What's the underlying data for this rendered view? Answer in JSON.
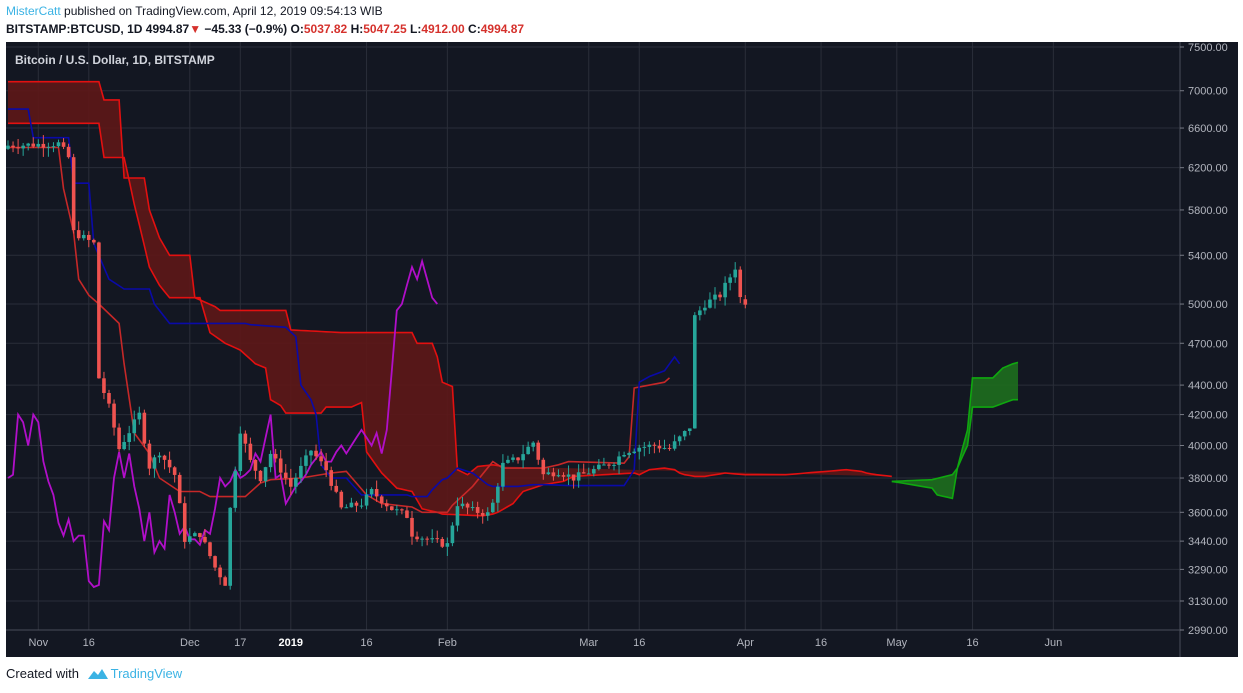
{
  "header": {
    "author": "MisterCatt",
    "published_text": "published on TradingView.com, April 12, 2019 09:54:13 WIB",
    "symbol": "BITSTAMP:BTCUSD, 1D",
    "last": "4994.87",
    "change": "−45.33 (−0.9%)",
    "open_label": "O:",
    "open": "5037.82",
    "high_label": "H:",
    "high": "5047.25",
    "low_label": "L:",
    "low": "4912.00",
    "close_label": "C:",
    "close": "4994.87"
  },
  "footer": {
    "created_with": "Created with",
    "brand": "TradingView"
  },
  "colors": {
    "background": "#131722",
    "grid": "#2a2e39",
    "up": "#26a69a",
    "down": "#ef5350",
    "cloud_bear": "#5e1717",
    "cloud_bull": "#1e6e1e",
    "span_red": "#e31010",
    "span_green": "#0fa80f",
    "tenkan": "#0a0aa8",
    "kijun": "#c62828",
    "lagging": "#b10fc9"
  },
  "chart_data": {
    "type": "candlestick",
    "title": "Bitcoin / U.S. Dollar, 1D, BITSTAMP",
    "scale": "log",
    "ylim": [
      2990,
      7500
    ],
    "yticks": [
      7500,
      7000,
      6600,
      6200,
      5800,
      5400,
      5000,
      4700,
      4400,
      4200,
      4000,
      3800,
      3600,
      3440,
      3290,
      3130,
      2990
    ],
    "ytick_labels": [
      "7500.00",
      "7000.00",
      "6600.00",
      "6200.00",
      "5800.00",
      "5400.00",
      "5000.00",
      "4700.00",
      "4400.00",
      "4200.00",
      "4000.00",
      "3800.00",
      "3600.00",
      "3440.00",
      "3290.00",
      "3130.00",
      "2990.00"
    ],
    "xticks": [
      {
        "label": "Nov",
        "day": 6,
        "bold": false
      },
      {
        "label": "16",
        "day": 16,
        "bold": false
      },
      {
        "label": "Dec",
        "day": 36,
        "bold": false
      },
      {
        "label": "17",
        "day": 46,
        "bold": false
      },
      {
        "label": "2019",
        "day": 56,
        "bold": true
      },
      {
        "label": "16",
        "day": 71,
        "bold": false
      },
      {
        "label": "Feb",
        "day": 87,
        "bold": false
      },
      {
        "label": "Mar",
        "day": 115,
        "bold": false
      },
      {
        "label": "16",
        "day": 125,
        "bold": false
      },
      {
        "label": "Apr",
        "day": 146,
        "bold": false
      },
      {
        "label": "16",
        "day": 161,
        "bold": false
      },
      {
        "label": "May",
        "day": 176,
        "bold": false
      },
      {
        "label": "16",
        "day": 191,
        "bold": false
      },
      {
        "label": "Jun",
        "day": 207,
        "bold": false
      }
    ],
    "grid": true,
    "key_closes": [
      [
        0,
        6420
      ],
      [
        10,
        6440
      ],
      [
        12,
        6300
      ],
      [
        13,
        5600
      ],
      [
        17,
        5500
      ],
      [
        18,
        4450
      ],
      [
        20,
        4250
      ],
      [
        22,
        3980
      ],
      [
        26,
        4200
      ],
      [
        28,
        3870
      ],
      [
        30,
        3960
      ],
      [
        33,
        3820
      ],
      [
        35,
        3450
      ],
      [
        38,
        3480
      ],
      [
        41,
        3300
      ],
      [
        43,
        3220
      ],
      [
        44,
        3620
      ],
      [
        46,
        4100
      ],
      [
        48,
        3900
      ],
      [
        50,
        3800
      ],
      [
        52,
        3950
      ],
      [
        56,
        3750
      ],
      [
        60,
        3970
      ],
      [
        63,
        3850
      ],
      [
        66,
        3620
      ],
      [
        70,
        3650
      ],
      [
        72,
        3720
      ],
      [
        76,
        3620
      ],
      [
        79,
        3580
      ],
      [
        80,
        3480
      ],
      [
        84,
        3440
      ],
      [
        87,
        3420
      ],
      [
        89,
        3650
      ],
      [
        92,
        3610
      ],
      [
        95,
        3590
      ],
      [
        96,
        3650
      ],
      [
        98,
        3880
      ],
      [
        101,
        3920
      ],
      [
        104,
        4020
      ],
      [
        106,
        3820
      ],
      [
        109,
        3840
      ],
      [
        112,
        3800
      ],
      [
        117,
        3860
      ],
      [
        120,
        3900
      ],
      [
        122,
        3960
      ],
      [
        125,
        3990
      ],
      [
        128,
        4000
      ],
      [
        131,
        3980
      ],
      [
        134,
        4080
      ],
      [
        135,
        4120
      ],
      [
        136,
        4900
      ],
      [
        138,
        5000
      ],
      [
        141,
        5070
      ],
      [
        143,
        5220
      ],
      [
        144,
        5300
      ],
      [
        145,
        5050
      ],
      [
        146,
        4995
      ]
    ],
    "tenkan_sen": [
      [
        0,
        6800
      ],
      [
        4,
        6800
      ],
      [
        5,
        6500
      ],
      [
        12,
        6500
      ],
      [
        13,
        6050
      ],
      [
        16,
        6050
      ],
      [
        17,
        5500
      ],
      [
        20,
        5200
      ],
      [
        23,
        5120
      ],
      [
        28,
        5120
      ],
      [
        29,
        5000
      ],
      [
        31,
        4900
      ],
      [
        32,
        4850
      ],
      [
        47,
        4850
      ],
      [
        48,
        4840
      ],
      [
        55,
        4820
      ],
      [
        57,
        4750
      ],
      [
        58,
        4400
      ],
      [
        60,
        4300
      ],
      [
        61,
        4200
      ],
      [
        62,
        3880
      ],
      [
        64,
        3800
      ],
      [
        67,
        3800
      ],
      [
        70,
        3700
      ],
      [
        79,
        3700
      ],
      [
        80,
        3690
      ],
      [
        83,
        3690
      ],
      [
        84,
        3730
      ],
      [
        86,
        3790
      ],
      [
        87,
        3800
      ],
      [
        89,
        3860
      ],
      [
        92,
        3830
      ],
      [
        95,
        3760
      ],
      [
        96,
        3750
      ],
      [
        101,
        3750
      ],
      [
        104,
        3760
      ],
      [
        107,
        3760
      ],
      [
        111,
        3755
      ],
      [
        122,
        3755
      ],
      [
        123,
        3800
      ],
      [
        124,
        3850
      ],
      [
        125,
        4420
      ],
      [
        127,
        4460
      ],
      [
        130,
        4500
      ],
      [
        132,
        4600
      ],
      [
        133,
        4550
      ]
    ],
    "kijun_sen": [
      [
        0,
        6400
      ],
      [
        10,
        6400
      ],
      [
        11,
        6000
      ],
      [
        13,
        5600
      ],
      [
        14,
        5200
      ],
      [
        16,
        5070
      ],
      [
        18,
        5000
      ],
      [
        22,
        4850
      ],
      [
        23,
        4550
      ],
      [
        25,
        4080
      ],
      [
        28,
        3950
      ],
      [
        30,
        3800
      ],
      [
        34,
        3720
      ],
      [
        38,
        3720
      ],
      [
        40,
        3690
      ],
      [
        47,
        3690
      ],
      [
        50,
        3770
      ],
      [
        52,
        3790
      ],
      [
        58,
        3800
      ],
      [
        64,
        3830
      ],
      [
        67,
        3840
      ],
      [
        71,
        3700
      ],
      [
        74,
        3650
      ],
      [
        80,
        3630
      ],
      [
        82,
        3600
      ],
      [
        87,
        3600
      ],
      [
        88,
        3640
      ],
      [
        92,
        3750
      ],
      [
        96,
        3900
      ],
      [
        98,
        3860
      ],
      [
        106,
        3860
      ],
      [
        109,
        3880
      ],
      [
        111,
        3900
      ],
      [
        122,
        3890
      ],
      [
        123,
        3930
      ],
      [
        124,
        4380
      ],
      [
        130,
        4420
      ],
      [
        131,
        4450
      ]
    ],
    "chikou_span": [
      [
        0,
        3800
      ],
      [
        1,
        3820
      ],
      [
        2,
        4200
      ],
      [
        3,
        4150
      ],
      [
        4,
        4000
      ],
      [
        5,
        4200
      ],
      [
        6,
        4150
      ],
      [
        7,
        3900
      ],
      [
        8,
        3780
      ],
      [
        9,
        3700
      ],
      [
        10,
        3540
      ],
      [
        11,
        3470
      ],
      [
        12,
        3560
      ],
      [
        13,
        3440
      ],
      [
        14,
        3470
      ],
      [
        15,
        3470
      ],
      [
        16,
        3230
      ],
      [
        17,
        3200
      ],
      [
        18,
        3210
      ],
      [
        19,
        3550
      ],
      [
        20,
        3500
      ],
      [
        21,
        3800
      ],
      [
        22,
        3960
      ],
      [
        23,
        3800
      ],
      [
        24,
        3950
      ],
      [
        25,
        3750
      ],
      [
        26,
        3620
      ],
      [
        27,
        3440
      ],
      [
        28,
        3600
      ],
      [
        29,
        3380
      ],
      [
        30,
        3440
      ],
      [
        31,
        3400
      ],
      [
        32,
        3700
      ],
      [
        33,
        3600
      ],
      [
        34,
        3480
      ],
      [
        35,
        3520
      ],
      [
        36,
        3450
      ],
      [
        37,
        3450
      ],
      [
        38,
        3420
      ],
      [
        39,
        3500
      ],
      [
        40,
        3480
      ],
      [
        41,
        3620
      ],
      [
        42,
        3800
      ],
      [
        43,
        3750
      ],
      [
        44,
        3780
      ],
      [
        45,
        3850
      ],
      [
        46,
        3800
      ],
      [
        47,
        3820
      ],
      [
        48,
        3850
      ],
      [
        49,
        3950
      ],
      [
        50,
        3900
      ],
      [
        51,
        4050
      ],
      [
        52,
        4200
      ],
      [
        53,
        3800
      ],
      [
        54,
        3820
      ],
      [
        55,
        3650
      ],
      [
        56,
        3700
      ],
      [
        57,
        3750
      ],
      [
        58,
        3780
      ],
      [
        59,
        3820
      ],
      [
        60,
        3880
      ],
      [
        61,
        3920
      ],
      [
        62,
        3960
      ],
      [
        63,
        3900
      ],
      [
        64,
        3900
      ],
      [
        65,
        3960
      ],
      [
        66,
        4000
      ],
      [
        67,
        3950
      ],
      [
        68,
        4000
      ],
      [
        69,
        4050
      ],
      [
        70,
        4100
      ],
      [
        71,
        4050
      ],
      [
        72,
        4000
      ],
      [
        73,
        4080
      ],
      [
        74,
        3950
      ],
      [
        75,
        4100
      ],
      [
        76,
        4500
      ],
      [
        77,
        4950
      ],
      [
        78,
        5000
      ],
      [
        79,
        5150
      ],
      [
        80,
        5300
      ],
      [
        81,
        5200
      ],
      [
        82,
        5350
      ],
      [
        83,
        5200
      ],
      [
        84,
        5050
      ],
      [
        85,
        5000
      ]
    ],
    "cloud_upper": [
      [
        0,
        7100
      ],
      [
        18,
        7100
      ],
      [
        19,
        6900
      ],
      [
        22,
        6900
      ],
      [
        23,
        6100
      ],
      [
        27,
        6100
      ],
      [
        28,
        5800
      ],
      [
        30,
        5550
      ],
      [
        32,
        5400
      ],
      [
        36,
        5400
      ],
      [
        37,
        5050
      ],
      [
        41,
        4980
      ],
      [
        42,
        4950
      ],
      [
        55,
        4950
      ],
      [
        56,
        4800
      ],
      [
        66,
        4780
      ],
      [
        80,
        4780
      ],
      [
        81,
        4700
      ],
      [
        84,
        4700
      ],
      [
        85,
        4600
      ],
      [
        86,
        4420
      ],
      [
        88,
        4390
      ],
      [
        89,
        3850
      ],
      [
        91,
        3820
      ],
      [
        93,
        3870
      ],
      [
        96,
        3880
      ],
      [
        98,
        3870
      ]
    ],
    "cloud_lower": [
      [
        0,
        6650
      ],
      [
        18,
        6650
      ],
      [
        19,
        6300
      ],
      [
        23,
        6300
      ],
      [
        25,
        5850
      ],
      [
        28,
        5300
      ],
      [
        30,
        5150
      ],
      [
        32,
        5050
      ],
      [
        38,
        5050
      ],
      [
        40,
        4780
      ],
      [
        43,
        4700
      ],
      [
        46,
        4650
      ],
      [
        49,
        4550
      ],
      [
        51,
        4520
      ],
      [
        52,
        4300
      ],
      [
        54,
        4260
      ],
      [
        55,
        4210
      ],
      [
        62,
        4210
      ],
      [
        63,
        4250
      ],
      [
        68,
        4250
      ],
      [
        70,
        4280
      ],
      [
        71,
        3960
      ],
      [
        74,
        3830
      ],
      [
        77,
        3740
      ],
      [
        80,
        3720
      ],
      [
        82,
        3620
      ],
      [
        85,
        3600
      ],
      [
        86,
        3590
      ],
      [
        94,
        3580
      ],
      [
        96,
        3590
      ],
      [
        97,
        3600
      ],
      [
        100,
        3650
      ],
      [
        102,
        3720
      ],
      [
        106,
        3760
      ],
      [
        110,
        3780
      ],
      [
        112,
        3810
      ],
      [
        124,
        3830
      ],
      [
        125,
        3820
      ],
      [
        127,
        3850
      ],
      [
        130,
        3860
      ],
      [
        132,
        3850
      ],
      [
        133,
        3830
      ],
      [
        134,
        3820
      ],
      [
        136,
        3810
      ],
      [
        138,
        3810
      ],
      [
        140,
        3820
      ],
      [
        142,
        3830
      ],
      [
        146,
        3820
      ],
      [
        148,
        3820
      ],
      [
        152,
        3820
      ],
      [
        154,
        3820
      ],
      [
        158,
        3830
      ],
      [
        162,
        3840
      ],
      [
        166,
        3850
      ],
      [
        169,
        3840
      ],
      [
        170,
        3830
      ],
      [
        172,
        3820
      ],
      [
        175,
        3810
      ]
    ],
    "future_cloud_bull": {
      "span_a": [
        [
          175,
          3780
        ],
        [
          183,
          3790
        ],
        [
          187,
          3820
        ],
        [
          188,
          3860
        ],
        [
          190,
          4100
        ],
        [
          191,
          4450
        ],
        [
          195,
          4450
        ],
        [
          197,
          4520
        ],
        [
          199,
          4550
        ],
        [
          200,
          4560
        ]
      ],
      "span_b": [
        [
          175,
          3780
        ],
        [
          183,
          3740
        ],
        [
          184,
          3700
        ],
        [
          187,
          3680
        ],
        [
          188,
          3860
        ],
        [
          190,
          4000
        ],
        [
          191,
          4250
        ],
        [
          195,
          4250
        ],
        [
          199,
          4300
        ],
        [
          200,
          4300
        ]
      ]
    }
  }
}
